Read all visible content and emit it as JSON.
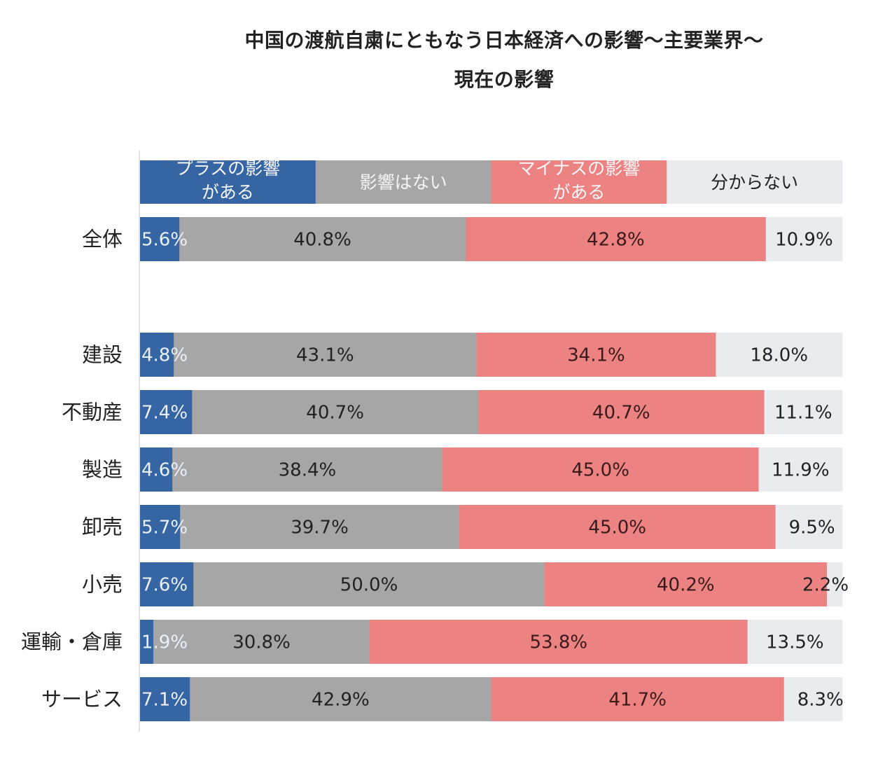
{
  "chart_data": {
    "type": "bar",
    "orientation": "horizontal",
    "stacked": true,
    "normalized_percent": true,
    "title": "中国の渡航自粛にともなう日本経済への影響～主要業界～",
    "subtitle": "現在の影響",
    "xlabel": "",
    "ylabel": "",
    "xlim": [
      0,
      100
    ],
    "grid": false,
    "legend_position": "top",
    "categories": [
      "全体",
      "建設",
      "不動産",
      "製造",
      "卸売",
      "小売",
      "運輸・倉庫",
      "サービス"
    ],
    "series": [
      {
        "name": "プラスの影響がある",
        "legend_lines": [
          "プラスの影響",
          "がある"
        ],
        "color": "#3565a3",
        "label_color": "#eaf0f8",
        "values": [
          5.6,
          4.8,
          7.4,
          4.6,
          5.7,
          7.6,
          1.9,
          7.1
        ],
        "labels": [
          "5.6%",
          "4.8%",
          "7.4%",
          "4.6%",
          "5.7%",
          "7.6%",
          "1.9%",
          "7.1%"
        ]
      },
      {
        "name": "影響はない",
        "legend_lines": [
          "影響はない"
        ],
        "color": "#a6a6a6",
        "label_color": "#222222",
        "values": [
          40.8,
          43.1,
          40.7,
          38.4,
          39.7,
          50.0,
          30.8,
          42.9
        ],
        "labels": [
          "40.8%",
          "43.1%",
          "40.7%",
          "38.4%",
          "39.7%",
          "50.0%",
          "30.8%",
          "42.9%"
        ]
      },
      {
        "name": "マイナスの影響がある",
        "legend_lines": [
          "マイナスの影響",
          "がある"
        ],
        "color": "#ec8282",
        "label_color": "#3a1a1a",
        "values": [
          42.8,
          34.1,
          40.7,
          45.0,
          45.0,
          40.2,
          53.8,
          41.7
        ],
        "labels": [
          "42.8%",
          "34.1%",
          "40.7%",
          "45.0%",
          "45.0%",
          "40.2%",
          "53.8%",
          "41.7%"
        ]
      },
      {
        "name": "分からない",
        "legend_lines": [
          "分からない"
        ],
        "color": "#e9ebee",
        "label_color": "#222222",
        "values": [
          10.9,
          18.0,
          11.1,
          11.9,
          9.5,
          2.2,
          13.5,
          8.3
        ],
        "labels": [
          "10.9%",
          "18.0%",
          "11.1%",
          "11.9%",
          "9.5%",
          "2.2%",
          "13.5%",
          "8.3%"
        ]
      }
    ]
  }
}
